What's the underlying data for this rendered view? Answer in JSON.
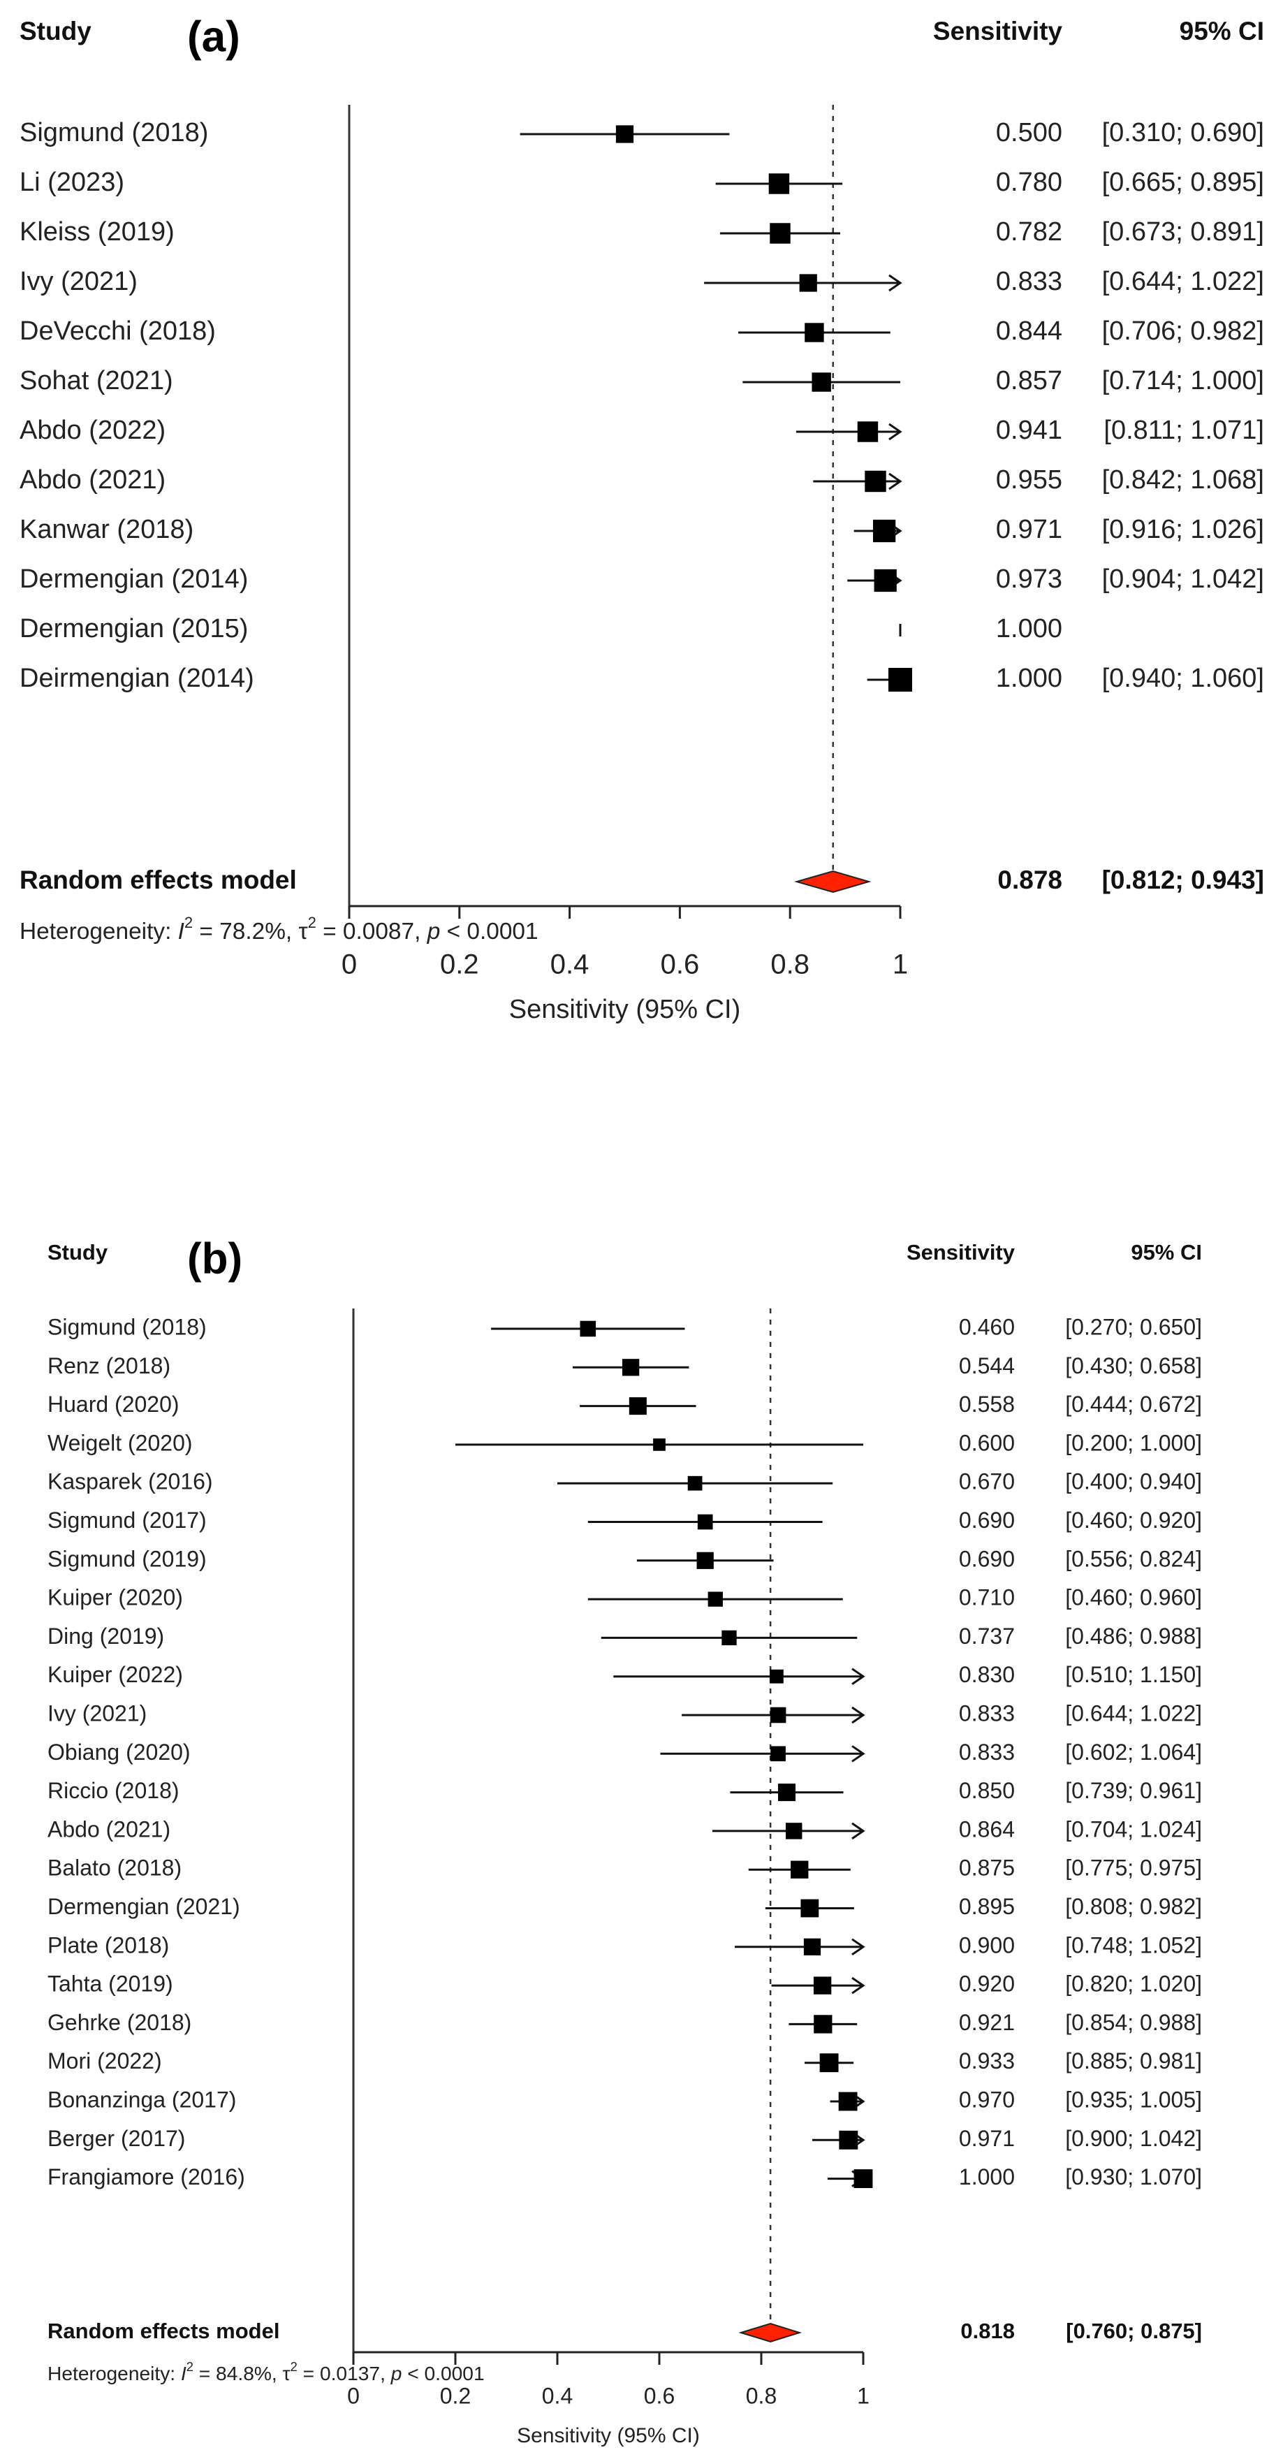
{
  "chart_data": [
    {
      "type": "forest",
      "panel_label": "(a)",
      "columns": {
        "study": "Study",
        "estimate": "Sensitivity",
        "ci": "95% CI"
      },
      "xlabel": "Sensitivity (95% CI)",
      "xlim": [
        0,
        1
      ],
      "xticks": [
        "0",
        "0.2",
        "0.4",
        "0.6",
        "0.8",
        "1"
      ],
      "tick_values": [
        0,
        0.2,
        0.4,
        0.6,
        0.8,
        1
      ],
      "reference_line": 0.878,
      "studies": [
        {
          "name": "Sigmund (2018)",
          "est": 0.5,
          "lo": 0.31,
          "hi": 0.69,
          "est_label": "0.500",
          "ci_label": "[0.310; 0.690]",
          "weight": 0.55
        },
        {
          "name": "Li (2023)",
          "est": 0.78,
          "lo": 0.665,
          "hi": 0.895,
          "est_label": "0.780",
          "ci_label": "[0.665; 0.895]",
          "weight": 0.75
        },
        {
          "name": "Kleiss (2019)",
          "est": 0.782,
          "lo": 0.673,
          "hi": 0.891,
          "est_label": "0.782",
          "ci_label": "[0.673; 0.891]",
          "weight": 0.75
        },
        {
          "name": "Ivy (2021)",
          "est": 0.833,
          "lo": 0.644,
          "hi": 1.022,
          "est_label": "0.833",
          "ci_label": "[0.644; 1.022]",
          "weight": 0.55
        },
        {
          "name": "DeVecchi (2018)",
          "est": 0.844,
          "lo": 0.706,
          "hi": 0.982,
          "est_label": "0.844",
          "ci_label": "[0.706; 0.982]",
          "weight": 0.65
        },
        {
          "name": "Sohat (2021)",
          "est": 0.857,
          "lo": 0.714,
          "hi": 1.0,
          "est_label": "0.857",
          "ci_label": "[0.714; 1.000]",
          "weight": 0.65
        },
        {
          "name": "Abdo (2022)",
          "est": 0.941,
          "lo": 0.811,
          "hi": 1.071,
          "est_label": "0.941",
          "ci_label": "[0.811; 1.071]",
          "weight": 0.75
        },
        {
          "name": "Abdo (2021)",
          "est": 0.955,
          "lo": 0.842,
          "hi": 1.068,
          "est_label": "0.955",
          "ci_label": "[0.842; 1.068]",
          "weight": 0.8
        },
        {
          "name": "Kanwar (2018)",
          "est": 0.971,
          "lo": 0.916,
          "hi": 1.026,
          "est_label": "0.971",
          "ci_label": "[0.916; 1.026]",
          "weight": 0.9
        },
        {
          "name": "Dermengian (2014)",
          "est": 0.973,
          "lo": 0.904,
          "hi": 1.042,
          "est_label": "0.973",
          "ci_label": "[0.904; 1.042]",
          "weight": 0.9
        },
        {
          "name": "Dermengian (2015)",
          "est": 1.0,
          "lo": null,
          "hi": null,
          "est_label": "1.000",
          "ci_label": "",
          "weight": 0
        },
        {
          "name": "Deirmengian (2014)",
          "est": 1.0,
          "lo": 0.94,
          "hi": 1.06,
          "est_label": "1.000",
          "ci_label": "[0.940; 1.060]",
          "weight": 1.0
        }
      ],
      "pooled": {
        "name": "Random effects model",
        "est": 0.878,
        "lo": 0.812,
        "hi": 0.943,
        "est_label": "0.878",
        "ci_label": "[0.812; 0.943]"
      },
      "heterogeneity": {
        "prefix": "Heterogeneity: ",
        "i2_sym": "I",
        "i2": " = 78.2%, ",
        "tau_sym": "τ",
        "tau2": " = 0.0087, ",
        "p_sym": "p",
        "p": " < 0.0001"
      },
      "colors": {
        "diamond": "#ff2200",
        "marker": "#000000"
      }
    },
    {
      "type": "forest",
      "panel_label": "(b)",
      "columns": {
        "study": "Study",
        "estimate": "Sensitivity",
        "ci": "95% CI"
      },
      "xlabel": "Sensitivity (95% CI)",
      "xlim": [
        0,
        1
      ],
      "xticks": [
        "0",
        "0.2",
        "0.4",
        "0.6",
        "0.8",
        "1"
      ],
      "tick_values": [
        0,
        0.2,
        0.4,
        0.6,
        0.8,
        1
      ],
      "reference_line": 0.818,
      "studies": [
        {
          "name": "Sigmund (2018)",
          "est": 0.46,
          "lo": 0.27,
          "hi": 0.65,
          "est_label": "0.460",
          "ci_label": "[0.270; 0.650]",
          "weight": 0.65
        },
        {
          "name": "Renz (2018)",
          "est": 0.544,
          "lo": 0.43,
          "hi": 0.658,
          "est_label": "0.544",
          "ci_label": "[0.430; 0.658]",
          "weight": 0.75
        },
        {
          "name": "Huard (2020)",
          "est": 0.558,
          "lo": 0.444,
          "hi": 0.672,
          "est_label": "0.558",
          "ci_label": "[0.444; 0.672]",
          "weight": 0.8
        },
        {
          "name": "Weigelt (2020)",
          "est": 0.6,
          "lo": 0.2,
          "hi": 1.0,
          "est_label": "0.600",
          "ci_label": "[0.200; 1.000]",
          "weight": 0.4
        },
        {
          "name": "Kasparek (2016)",
          "est": 0.67,
          "lo": 0.4,
          "hi": 0.94,
          "est_label": "0.670",
          "ci_label": "[0.400; 0.940]",
          "weight": 0.55
        },
        {
          "name": "Sigmund (2017)",
          "est": 0.69,
          "lo": 0.46,
          "hi": 0.92,
          "est_label": "0.690",
          "ci_label": "[0.460; 0.920]",
          "weight": 0.6
        },
        {
          "name": "Sigmund (2019)",
          "est": 0.69,
          "lo": 0.556,
          "hi": 0.824,
          "est_label": "0.690",
          "ci_label": "[0.556; 0.824]",
          "weight": 0.75
        },
        {
          "name": "Kuiper (2020)",
          "est": 0.71,
          "lo": 0.46,
          "hi": 0.96,
          "est_label": "0.710",
          "ci_label": "[0.460; 0.960]",
          "weight": 0.58
        },
        {
          "name": "Ding (2019)",
          "est": 0.737,
          "lo": 0.486,
          "hi": 0.988,
          "est_label": "0.737",
          "ci_label": "[0.486; 0.988]",
          "weight": 0.58
        },
        {
          "name": "Kuiper (2022)",
          "est": 0.83,
          "lo": 0.51,
          "hi": 1.15,
          "est_label": "0.830",
          "ci_label": "[0.510; 1.150]",
          "weight": 0.5
        },
        {
          "name": "Ivy (2021)",
          "est": 0.833,
          "lo": 0.644,
          "hi": 1.022,
          "est_label": "0.833",
          "ci_label": "[0.644; 1.022]",
          "weight": 0.65
        },
        {
          "name": "Obiang (2020)",
          "est": 0.833,
          "lo": 0.602,
          "hi": 1.064,
          "est_label": "0.833",
          "ci_label": "[0.602; 1.064]",
          "weight": 0.6
        },
        {
          "name": "Riccio (2018)",
          "est": 0.85,
          "lo": 0.739,
          "hi": 0.961,
          "est_label": "0.850",
          "ci_label": "[0.739; 0.961]",
          "weight": 0.8
        },
        {
          "name": "Abdo (2021)",
          "est": 0.864,
          "lo": 0.704,
          "hi": 1.024,
          "est_label": "0.864",
          "ci_label": "[0.704; 1.024]",
          "weight": 0.7
        },
        {
          "name": "Balato (2018)",
          "est": 0.875,
          "lo": 0.775,
          "hi": 0.975,
          "est_label": "0.875",
          "ci_label": "[0.775; 0.975]",
          "weight": 0.82
        },
        {
          "name": "Dermengian (2021)",
          "est": 0.895,
          "lo": 0.808,
          "hi": 0.982,
          "est_label": "0.895",
          "ci_label": "[0.808; 0.982]",
          "weight": 0.85
        },
        {
          "name": "Plate (2018)",
          "est": 0.9,
          "lo": 0.748,
          "hi": 1.052,
          "est_label": "0.900",
          "ci_label": "[0.748; 1.052]",
          "weight": 0.75
        },
        {
          "name": "Tahta (2019)",
          "est": 0.92,
          "lo": 0.82,
          "hi": 1.02,
          "est_label": "0.920",
          "ci_label": "[0.820; 1.020]",
          "weight": 0.82
        },
        {
          "name": "Gehrke (2018)",
          "est": 0.921,
          "lo": 0.854,
          "hi": 0.988,
          "est_label": "0.921",
          "ci_label": "[0.854; 0.988]",
          "weight": 0.88
        },
        {
          "name": "Mori (2022)",
          "est": 0.933,
          "lo": 0.885,
          "hi": 0.981,
          "est_label": "0.933",
          "ci_label": "[0.885; 0.981]",
          "weight": 0.92
        },
        {
          "name": "Bonanzinga (2017)",
          "est": 0.97,
          "lo": 0.935,
          "hi": 1.005,
          "est_label": "0.970",
          "ci_label": "[0.935; 1.005]",
          "weight": 0.92
        },
        {
          "name": "Berger (2017)",
          "est": 0.971,
          "lo": 0.9,
          "hi": 1.042,
          "est_label": "0.971",
          "ci_label": "[0.900; 1.042]",
          "weight": 0.92
        },
        {
          "name": "Frangiamore (2016)",
          "est": 1.0,
          "lo": 0.93,
          "hi": 1.07,
          "est_label": "1.000",
          "ci_label": "[0.930; 1.070]",
          "weight": 0.92
        }
      ],
      "pooled": {
        "name": "Random effects model",
        "est": 0.818,
        "lo": 0.76,
        "hi": 0.875,
        "est_label": "0.818",
        "ci_label": "[0.760; 0.875]"
      },
      "heterogeneity": {
        "prefix": "Heterogeneity: ",
        "i2_sym": "I",
        "i2": " = 84.8%, ",
        "tau_sym": "τ",
        "tau2": " = 0.0137, ",
        "p_sym": "p",
        "p": " < 0.0001"
      },
      "colors": {
        "diamond": "#ff2200",
        "marker": "#000000"
      }
    }
  ]
}
